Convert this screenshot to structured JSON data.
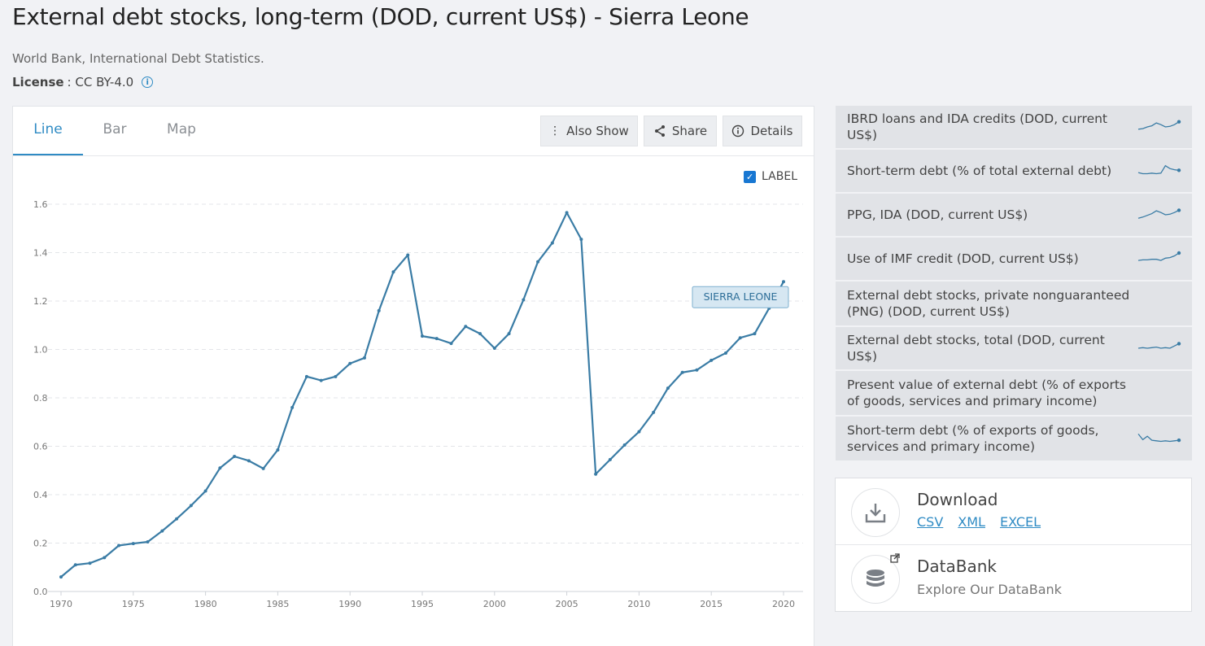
{
  "header": {
    "title": "External debt stocks, long-term (DOD, current US$) - Sierra Leone",
    "source": "World Bank, International Debt Statistics.",
    "license_label": "License",
    "license_value": " : CC BY-4.0"
  },
  "tabs": [
    {
      "label": "Line",
      "active": true
    },
    {
      "label": "Bar",
      "active": false
    },
    {
      "label": "Map",
      "active": false
    }
  ],
  "toolbar": {
    "also_show": "Also Show",
    "share": "Share",
    "details": "Details"
  },
  "label_toggle": {
    "label": "LABEL",
    "checked": true
  },
  "chart_data": {
    "type": "line",
    "title": "",
    "xlabel": "",
    "ylabel": "",
    "xlim": [
      1970,
      2020
    ],
    "ylim": [
      0,
      1.6
    ],
    "x_ticks": [
      "1970",
      "1975",
      "1980",
      "1985",
      "1990",
      "1995",
      "2000",
      "2005",
      "2010",
      "2015",
      "2020"
    ],
    "y_ticks": [
      "0.0",
      "0.2",
      "0.4",
      "0.6",
      "0.8",
      "1.0",
      "1.2",
      "1.4",
      "1.6"
    ],
    "grid": true,
    "line_color": "#3a7ca5",
    "series": [
      {
        "name": "SIERRA LEONE",
        "x": [
          1970,
          1971,
          1972,
          1973,
          1974,
          1975,
          1976,
          1977,
          1978,
          1979,
          1980,
          1981,
          1982,
          1983,
          1984,
          1985,
          1986,
          1987,
          1988,
          1989,
          1990,
          1991,
          1992,
          1993,
          1994,
          1995,
          1996,
          1997,
          1998,
          1999,
          2000,
          2001,
          2002,
          2003,
          2004,
          2005,
          2006,
          2007,
          2008,
          2009,
          2010,
          2011,
          2012,
          2013,
          2014,
          2015,
          2016,
          2017,
          2018,
          2019,
          2020
        ],
        "y": [
          0.06,
          0.11,
          0.117,
          0.14,
          0.19,
          0.198,
          0.205,
          0.25,
          0.3,
          0.355,
          0.415,
          0.51,
          0.558,
          0.54,
          0.508,
          0.585,
          0.76,
          0.888,
          0.872,
          0.888,
          0.942,
          0.965,
          1.16,
          1.32,
          1.39,
          1.055,
          1.045,
          1.025,
          1.095,
          1.065,
          1.005,
          1.065,
          1.205,
          1.362,
          1.44,
          1.565,
          1.455,
          0.485,
          0.545,
          0.605,
          0.66,
          0.74,
          0.84,
          0.905,
          0.915,
          0.955,
          0.985,
          1.048,
          1.065,
          1.17,
          1.28
        ]
      }
    ],
    "series_label": "SIERRA LEONE"
  },
  "related": [
    {
      "label": "IBRD loans and IDA credits (DOD, current US$)",
      "spark": [
        0.3,
        0.35,
        0.5,
        0.6,
        0.85,
        0.7,
        0.5,
        0.55,
        0.7,
        0.95
      ],
      "show_spark": true
    },
    {
      "label": "Short-term debt (% of total external debt)",
      "spark": [
        0.35,
        0.25,
        0.25,
        0.3,
        0.25,
        0.3,
        0.95,
        0.7,
        0.6,
        0.55
      ],
      "show_spark": true
    },
    {
      "label": "PPG, IDA (DOD, current US$)",
      "spark": [
        0.2,
        0.3,
        0.45,
        0.6,
        0.85,
        0.7,
        0.5,
        0.55,
        0.7,
        0.9
      ],
      "show_spark": true
    },
    {
      "label": "Use of IMF credit (DOD, current US$)",
      "spark": [
        0.35,
        0.4,
        0.4,
        0.45,
        0.45,
        0.35,
        0.55,
        0.6,
        0.75,
        1.0
      ],
      "show_spark": true
    },
    {
      "label": "External debt stocks, private nonguaranteed (PNG) (DOD, current US$)",
      "spark": [],
      "show_spark": false
    },
    {
      "label": "External debt stocks, total (DOD, current US$)",
      "spark": [
        0.5,
        0.55,
        0.5,
        0.55,
        0.6,
        0.5,
        0.55,
        0.5,
        0.7,
        0.9
      ],
      "show_spark": true
    },
    {
      "label": "Present value of external debt (% of exports of goods, services and primary income)",
      "spark": [],
      "show_spark": false
    },
    {
      "label": "Short-term debt (% of exports of goods, services and primary income)",
      "spark": [
        0.9,
        0.4,
        0.7,
        0.35,
        0.3,
        0.25,
        0.3,
        0.25,
        0.3,
        0.35
      ],
      "show_spark": true
    }
  ],
  "download": {
    "title": "Download",
    "links": [
      "CSV",
      "XML",
      "EXCEL"
    ]
  },
  "databank": {
    "title": "DataBank",
    "subtitle": "Explore Our DataBank"
  }
}
